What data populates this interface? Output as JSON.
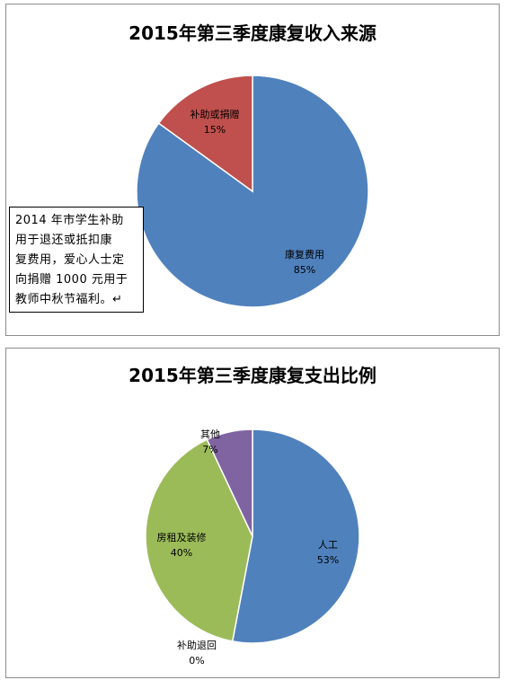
{
  "chart_data": [
    {
      "type": "pie",
      "title": "2015年第三季度康复收入来源",
      "slices": [
        {
          "label": "康复费用",
          "value": 85,
          "pct_label": "85%",
          "color": "#4f81bd"
        },
        {
          "label": "补助或捐赠",
          "value": 15,
          "pct_label": "15%",
          "color": "#c0504d"
        }
      ]
    },
    {
      "type": "pie",
      "title": "2015年第三季度康复支出比例",
      "slices": [
        {
          "label": "人工",
          "value": 53,
          "pct_label": "53%",
          "color": "#4f81bd"
        },
        {
          "label": "补助退回",
          "value": 0,
          "pct_label": "0%",
          "color": "#c0504d"
        },
        {
          "label": "房租及装修",
          "value": 40,
          "pct_label": "40%",
          "color": "#9bbb59"
        },
        {
          "label": "其他",
          "value": 7,
          "pct_label": "7%",
          "color": "#8064a2"
        }
      ]
    }
  ],
  "annotation": {
    "lines": [
      "2014 年市学生补助",
      "用于退还或抵扣康",
      "复费用，爱心人士定",
      "向捐赠 1000 元用于",
      "教师中秋节福利。↵"
    ]
  }
}
